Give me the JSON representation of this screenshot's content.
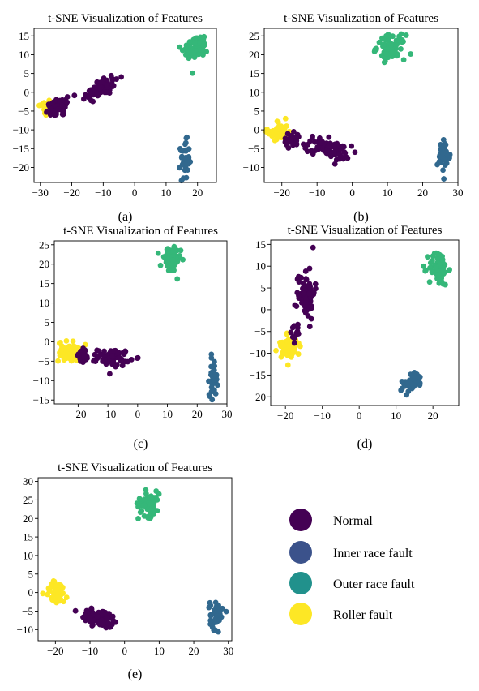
{
  "colors": {
    "normal": "#440154",
    "inner": "#31688e",
    "outer": "#35b779",
    "roller": "#fde725"
  },
  "legend": {
    "items": [
      {
        "label": "Normal",
        "color": "#440154"
      },
      {
        "label": "Inner race fault",
        "color": "#3b528b"
      },
      {
        "label": "Outer race fault",
        "color": "#21918c"
      },
      {
        "label": "Roller fault",
        "color": "#fde725"
      }
    ]
  },
  "chart_data": [
    {
      "type": "scatter",
      "caption": "(a)",
      "title": "t-SNE Visualization of Features",
      "xlim": [
        -32,
        26
      ],
      "ylim": [
        -24,
        17
      ],
      "xticks": [
        -30,
        -20,
        -10,
        0,
        10,
        20
      ],
      "yticks": [
        -20,
        -15,
        -10,
        -5,
        0,
        5,
        10,
        15
      ],
      "clusters": [
        {
          "class": "roller",
          "cx": -28.5,
          "cy": -4,
          "sx": 1.0,
          "sy": 1.2,
          "n": 25
        },
        {
          "class": "normal",
          "cx": -24,
          "cy": -4,
          "sx": 2.2,
          "sy": 1.3,
          "n": 45,
          "tilt": 0.3
        },
        {
          "class": "normal",
          "cx": -11,
          "cy": 1,
          "sx": 3.2,
          "sy": 1.3,
          "n": 70,
          "tilt": 0.4
        },
        {
          "class": "outer",
          "cx": 19.5,
          "cy": 12,
          "sx": 2.0,
          "sy": 1.5,
          "n": 75,
          "tilt": 0.3
        },
        {
          "class": "inner",
          "cx": 16,
          "cy": -18,
          "sx": 0.7,
          "sy": 2.5,
          "n": 40
        }
      ]
    },
    {
      "type": "scatter",
      "caption": "(b)",
      "title": "t-SNE Visualization of Features",
      "xlim": [
        -25,
        30
      ],
      "ylim": [
        -14,
        27
      ],
      "xticks": [
        -20,
        -10,
        0,
        10,
        20,
        30
      ],
      "yticks": [
        -10,
        -5,
        0,
        5,
        10,
        15,
        20,
        25
      ],
      "clusters": [
        {
          "class": "roller",
          "cx": -21,
          "cy": -0.5,
          "sx": 1.5,
          "sy": 1.5,
          "n": 45
        },
        {
          "class": "normal",
          "cx": -17,
          "cy": -2.5,
          "sx": 1.5,
          "sy": 1.0,
          "n": 25
        },
        {
          "class": "normal",
          "cx": -7,
          "cy": -5,
          "sx": 3.3,
          "sy": 1.2,
          "n": 80,
          "tilt": -0.25
        },
        {
          "class": "outer",
          "cx": 11,
          "cy": 22,
          "sx": 2.0,
          "sy": 1.6,
          "n": 75
        },
        {
          "class": "inner",
          "cx": 26,
          "cy": -7,
          "sx": 0.9,
          "sy": 2.2,
          "n": 40
        }
      ]
    },
    {
      "type": "scatter",
      "caption": "(c)",
      "title": "t-SNE Visualization of Features",
      "xlim": [
        -28,
        30
      ],
      "ylim": [
        -16,
        26
      ],
      "xticks": [
        -20,
        -10,
        0,
        10,
        20,
        30
      ],
      "yticks": [
        -15,
        -10,
        -5,
        0,
        5,
        10,
        15,
        20,
        25
      ],
      "clusters": [
        {
          "class": "roller",
          "cx": -23,
          "cy": -2.5,
          "sx": 1.8,
          "sy": 1.3,
          "n": 55
        },
        {
          "class": "normal",
          "cx": -18.5,
          "cy": -3.5,
          "sx": 1.0,
          "sy": 0.9,
          "n": 20
        },
        {
          "class": "normal",
          "cx": -8,
          "cy": -4,
          "sx": 2.7,
          "sy": 1.1,
          "n": 70
        },
        {
          "class": "outer",
          "cx": 11,
          "cy": 21,
          "sx": 1.7,
          "sy": 1.6,
          "n": 75
        },
        {
          "class": "inner",
          "cx": 25.5,
          "cy": -9,
          "sx": 0.7,
          "sy": 2.4,
          "n": 40
        }
      ]
    },
    {
      "type": "scatter",
      "caption": "(d)",
      "title": "t-SNE Visualization of Features",
      "xlim": [
        -24,
        27
      ],
      "ylim": [
        -22,
        16
      ],
      "xticks": [
        -20,
        -10,
        0,
        10,
        20
      ],
      "yticks": [
        -20,
        -15,
        -10,
        -5,
        0,
        5,
        10,
        15
      ],
      "clusters": [
        {
          "class": "roller",
          "cx": -19,
          "cy": -9,
          "sx": 1.3,
          "sy": 1.4,
          "n": 50,
          "tilt": 0.5
        },
        {
          "class": "normal",
          "cx": -14.5,
          "cy": 4,
          "sx": 1.2,
          "sy": 3.0,
          "n": 75
        },
        {
          "class": "normal",
          "cx": -17,
          "cy": -5,
          "sx": 0.8,
          "sy": 1.2,
          "n": 12
        },
        {
          "class": "outer",
          "cx": 21.5,
          "cy": 9.5,
          "sx": 1.3,
          "sy": 2.0,
          "n": 70
        },
        {
          "class": "inner",
          "cx": 14.5,
          "cy": -16.5,
          "sx": 1.5,
          "sy": 1.1,
          "n": 40,
          "tilt": 0.9
        }
      ]
    },
    {
      "type": "scatter",
      "caption": "(e)",
      "title": "t-SNE Visualization of Features",
      "xlim": [
        -25,
        31
      ],
      "ylim": [
        -13,
        31
      ],
      "xticks": [
        -20,
        -10,
        0,
        10,
        20,
        30
      ],
      "yticks": [
        -10,
        -5,
        0,
        5,
        10,
        15,
        20,
        25,
        30
      ],
      "clusters": [
        {
          "class": "roller",
          "cx": -19.5,
          "cy": 0,
          "sx": 1.7,
          "sy": 1.5,
          "n": 50
        },
        {
          "class": "normal",
          "cx": -7,
          "cy": -7,
          "sx": 2.8,
          "sy": 1.2,
          "n": 75,
          "tilt": -0.3
        },
        {
          "class": "outer",
          "cx": 7,
          "cy": 24,
          "sx": 1.5,
          "sy": 1.7,
          "n": 75
        },
        {
          "class": "inner",
          "cx": 26.5,
          "cy": -6,
          "sx": 0.9,
          "sy": 2.0,
          "n": 40
        }
      ]
    }
  ]
}
